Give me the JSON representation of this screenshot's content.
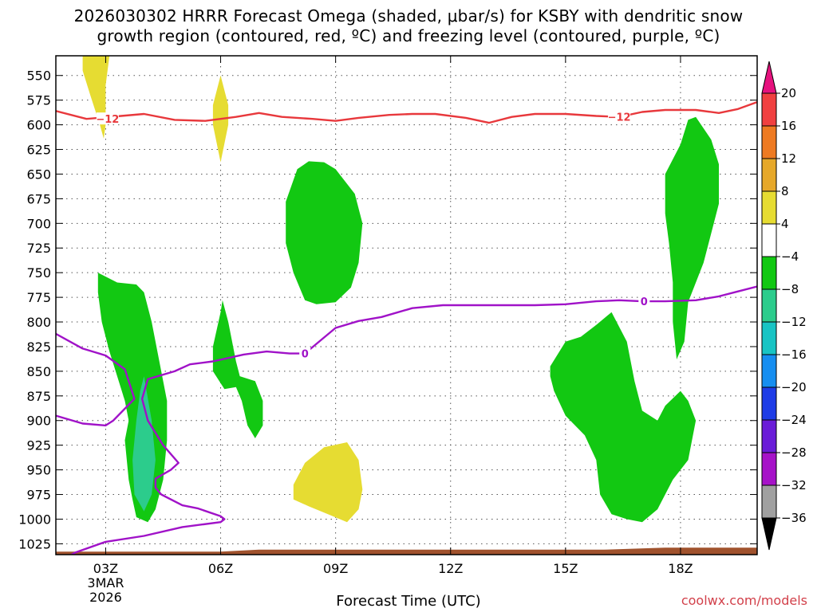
{
  "chart_data": {
    "type": "time-height contour",
    "title_line1": "2026030302 HRRR Forecast Omega (shaded, μbar/s) for KSBY with dendritic snow",
    "title_line2": "growth region (contoured, red, ºC) and freezing level (contoured, purple, ºC)",
    "xlabel": "Forecast Time (UTC)",
    "credit": "coolwx.com/models",
    "x_axis": {
      "unit": "forecast hour",
      "range": [
        1.7,
        20.0
      ],
      "ticks": [
        {
          "hour": 3,
          "label": "03Z",
          "sub1": "3MAR",
          "sub2": "2026"
        },
        {
          "hour": 6,
          "label": "06Z"
        },
        {
          "hour": 9,
          "label": "09Z"
        },
        {
          "hour": 12,
          "label": "12Z"
        },
        {
          "hour": 15,
          "label": "15Z"
        },
        {
          "hour": 18,
          "label": "18Z"
        }
      ]
    },
    "y_axis": {
      "unit": "hPa",
      "range": [
        1036,
        530
      ],
      "ticks": [
        "550",
        "575",
        "600",
        "625",
        "650",
        "675",
        "700",
        "725",
        "750",
        "775",
        "800",
        "825",
        "850",
        "875",
        "900",
        "925",
        "950",
        "975",
        "1000",
        "1025"
      ]
    },
    "colorbar": {
      "labels": [
        "20",
        "16",
        "12",
        "8",
        "4",
        "−4",
        "−8",
        "−12",
        "−16",
        "−20",
        "−24",
        "−28",
        "−32",
        "−36"
      ],
      "top_color": "#e6127e",
      "colors": [
        "#f04040",
        "#ee7a22",
        "#e6a82a",
        "#e6dc32",
        "#ffffff",
        "#12c812",
        "#2ccc8c",
        "#18c4c4",
        "#168ef0",
        "#1e3ce6",
        "#6a1cd8",
        "#a612c8",
        "#a0a0a0"
      ],
      "bottom_color": "#000000"
    },
    "dendritic_label": "−12",
    "dendritic_line": [
      [
        1.7,
        586
      ],
      [
        2.5,
        594
      ],
      [
        3.4,
        591
      ],
      [
        4.0,
        589
      ],
      [
        4.8,
        595
      ],
      [
        5.6,
        596
      ],
      [
        6.4,
        592
      ],
      [
        7.0,
        588
      ],
      [
        7.6,
        592
      ],
      [
        8.4,
        594
      ],
      [
        9.0,
        596
      ],
      [
        9.6,
        593
      ],
      [
        10.4,
        590
      ],
      [
        11.0,
        589
      ],
      [
        11.6,
        589
      ],
      [
        12.4,
        593
      ],
      [
        13.0,
        598
      ],
      [
        13.6,
        592
      ],
      [
        14.2,
        589
      ],
      [
        15.0,
        589
      ],
      [
        15.8,
        591
      ],
      [
        16.4,
        592
      ],
      [
        17.0,
        587
      ],
      [
        17.6,
        585
      ],
      [
        18.4,
        585
      ],
      [
        19.0,
        588
      ],
      [
        19.5,
        584
      ],
      [
        20.0,
        577
      ]
    ],
    "freezing_label": "0",
    "freezing_line": [
      [
        1.7,
        812
      ],
      [
        2.4,
        827
      ],
      [
        3.0,
        834
      ],
      [
        3.5,
        848
      ],
      [
        3.75,
        878
      ],
      [
        3.2,
        900
      ],
      [
        3.0,
        905
      ],
      [
        2.4,
        903
      ],
      [
        1.7,
        895
      ]
    ],
    "freezing_line2": [
      [
        1.7,
        1045
      ],
      [
        2.2,
        1034
      ],
      [
        3.0,
        1023
      ],
      [
        4.0,
        1017
      ],
      [
        5.0,
        1008
      ],
      [
        6.0,
        1003
      ],
      [
        6.1,
        1000
      ],
      [
        6.0,
        997
      ],
      [
        5.4,
        989
      ],
      [
        5.0,
        986
      ],
      [
        4.45,
        975
      ],
      [
        4.3,
        968
      ],
      [
        4.3,
        959
      ],
      [
        4.7,
        950
      ],
      [
        4.9,
        943
      ],
      [
        4.5,
        925
      ],
      [
        4.1,
        900
      ],
      [
        3.95,
        878
      ],
      [
        4.1,
        858
      ],
      [
        4.8,
        850
      ],
      [
        5.2,
        843
      ],
      [
        5.8,
        840
      ],
      [
        6.6,
        833
      ],
      [
        7.2,
        830
      ],
      [
        7.8,
        832
      ],
      [
        8.2,
        832
      ],
      [
        8.6,
        819
      ],
      [
        9.0,
        806
      ],
      [
        9.6,
        799
      ],
      [
        10.2,
        795
      ],
      [
        11.0,
        786
      ],
      [
        11.8,
        783
      ],
      [
        13.0,
        783
      ],
      [
        14.2,
        783
      ],
      [
        15.0,
        782
      ],
      [
        15.8,
        779
      ],
      [
        16.4,
        778
      ],
      [
        17.0,
        779
      ],
      [
        17.6,
        779
      ],
      [
        18.4,
        778
      ],
      [
        19.0,
        774
      ],
      [
        19.5,
        769
      ],
      [
        20.0,
        764
      ]
    ],
    "omega_regions": [
      {
        "value": "4 to 8",
        "color": "#e6dc32",
        "points": [
          [
            2.4,
            530
          ],
          [
            3.1,
            530
          ],
          [
            3.0,
            560
          ],
          [
            3.0,
            600
          ],
          [
            2.95,
            614
          ],
          [
            2.85,
            600
          ],
          [
            2.6,
            570
          ],
          [
            2.4,
            545
          ]
        ]
      },
      {
        "value": "4 to 8",
        "color": "#e6dc32",
        "points": [
          [
            6.0,
            550
          ],
          [
            6.2,
            580
          ],
          [
            6.2,
            600
          ],
          [
            6.0,
            638
          ],
          [
            5.8,
            600
          ],
          [
            5.8,
            580
          ]
        ]
      },
      {
        "value": "4 to 8",
        "color": "#e6dc32",
        "points": [
          [
            7.9,
            965
          ],
          [
            8.2,
            943
          ],
          [
            8.7,
            927
          ],
          [
            9.3,
            922
          ],
          [
            9.6,
            940
          ],
          [
            9.7,
            970
          ],
          [
            9.6,
            990
          ],
          [
            9.3,
            1003
          ],
          [
            8.8,
            995
          ],
          [
            8.3,
            987
          ],
          [
            7.9,
            980
          ]
        ]
      },
      {
        "value": "-4 to -8",
        "color": "#12c812",
        "points": [
          [
            2.8,
            750
          ],
          [
            3.3,
            760
          ],
          [
            3.8,
            762
          ],
          [
            4.0,
            770
          ],
          [
            4.2,
            800
          ],
          [
            4.4,
            840
          ],
          [
            4.6,
            880
          ],
          [
            4.6,
            920
          ],
          [
            4.5,
            960
          ],
          [
            4.3,
            990
          ],
          [
            4.1,
            1003
          ],
          [
            3.8,
            998
          ],
          [
            3.7,
            980
          ],
          [
            3.6,
            960
          ],
          [
            3.5,
            920
          ],
          [
            3.6,
            900
          ],
          [
            3.5,
            880
          ],
          [
            3.3,
            855
          ],
          [
            3.1,
            830
          ],
          [
            2.9,
            800
          ],
          [
            2.8,
            770
          ]
        ]
      },
      {
        "value": "-8 to -12",
        "color": "#2ccc8c",
        "points": [
          [
            4.0,
            855
          ],
          [
            4.2,
            900
          ],
          [
            4.3,
            940
          ],
          [
            4.2,
            975
          ],
          [
            4.0,
            992
          ],
          [
            3.75,
            975
          ],
          [
            3.7,
            940
          ],
          [
            3.8,
            900
          ],
          [
            3.9,
            870
          ]
        ]
      },
      {
        "value": "-4 to -8",
        "color": "#12c812",
        "points": [
          [
            5.8,
            825
          ],
          [
            6.0,
            790
          ],
          [
            6.05,
            778
          ],
          [
            6.2,
            800
          ],
          [
            6.4,
            840
          ],
          [
            6.5,
            855
          ],
          [
            6.9,
            860
          ],
          [
            7.1,
            880
          ],
          [
            7.1,
            905
          ],
          [
            6.9,
            918
          ],
          [
            6.7,
            905
          ],
          [
            6.55,
            880
          ],
          [
            6.4,
            866
          ],
          [
            6.1,
            868
          ],
          [
            5.8,
            850
          ]
        ]
      },
      {
        "value": "-4 to -8",
        "color": "#12c812",
        "points": [
          [
            7.7,
            678
          ],
          [
            8.0,
            645
          ],
          [
            8.3,
            637
          ],
          [
            8.7,
            638
          ],
          [
            9.0,
            645
          ],
          [
            9.5,
            670
          ],
          [
            9.7,
            700
          ],
          [
            9.6,
            740
          ],
          [
            9.4,
            765
          ],
          [
            9.0,
            780
          ],
          [
            8.5,
            782
          ],
          [
            8.2,
            778
          ],
          [
            7.9,
            750
          ],
          [
            7.7,
            720
          ],
          [
            7.7,
            690
          ]
        ]
      },
      {
        "value": "-4 to -8",
        "color": "#12c812",
        "points": [
          [
            14.6,
            845
          ],
          [
            15.0,
            820
          ],
          [
            15.4,
            815
          ],
          [
            15.8,
            803
          ],
          [
            16.2,
            790
          ],
          [
            16.6,
            820
          ],
          [
            16.8,
            860
          ],
          [
            17.0,
            890
          ],
          [
            17.4,
            900
          ],
          [
            17.6,
            885
          ],
          [
            18.0,
            870
          ],
          [
            18.2,
            880
          ],
          [
            18.4,
            900
          ],
          [
            18.2,
            940
          ],
          [
            17.8,
            960
          ],
          [
            17.4,
            990
          ],
          [
            17.0,
            1003
          ],
          [
            16.6,
            1000
          ],
          [
            16.2,
            995
          ],
          [
            15.9,
            975
          ],
          [
            15.8,
            940
          ],
          [
            15.5,
            915
          ],
          [
            15.0,
            895
          ],
          [
            14.7,
            870
          ],
          [
            14.6,
            855
          ]
        ]
      },
      {
        "value": "-4 to -8",
        "color": "#12c812",
        "points": [
          [
            18.0,
            620
          ],
          [
            18.2,
            595
          ],
          [
            18.4,
            592
          ],
          [
            18.8,
            615
          ],
          [
            19.0,
            640
          ],
          [
            19.0,
            680
          ],
          [
            18.8,
            710
          ],
          [
            18.6,
            740
          ],
          [
            18.2,
            780
          ],
          [
            18.1,
            820
          ],
          [
            17.9,
            838
          ],
          [
            17.8,
            800
          ],
          [
            17.8,
            760
          ],
          [
            17.7,
            720
          ],
          [
            17.6,
            690
          ],
          [
            17.6,
            650
          ]
        ]
      }
    ],
    "terrain_color": "#a0522d",
    "terrain_top": [
      [
        1.7,
        1033
      ],
      [
        6.0,
        1033
      ],
      [
        7.0,
        1031
      ],
      [
        12.0,
        1031
      ],
      [
        16.0,
        1031
      ],
      [
        17.6,
        1029
      ],
      [
        20.0,
        1029
      ]
    ]
  }
}
